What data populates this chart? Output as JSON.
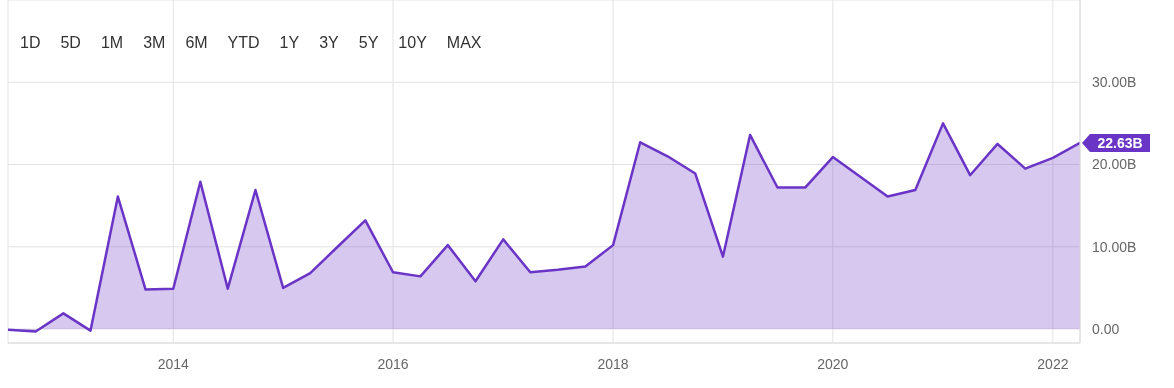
{
  "chart_data": {
    "type": "area",
    "annotations": [
      "1D",
      "5D",
      "1M",
      "3M",
      "6M",
      "YTD",
      "1Y",
      "3Y",
      "5Y",
      "10Y",
      "MAX"
    ],
    "x": [
      "2012-07",
      "2012-10",
      "2013-01",
      "2013-04",
      "2013-07",
      "2013-10",
      "2014-01",
      "2014-04",
      "2014-07",
      "2014-10",
      "2015-01",
      "2015-04",
      "2015-07",
      "2015-10",
      "2016-01",
      "2016-04",
      "2016-07",
      "2016-10",
      "2017-01",
      "2017-04",
      "2017-07",
      "2017-10",
      "2018-01",
      "2018-04",
      "2018-07",
      "2018-10",
      "2019-01",
      "2019-04",
      "2019-07",
      "2019-10",
      "2020-01",
      "2020-04",
      "2020-07",
      "2020-10",
      "2021-01",
      "2021-04",
      "2021-07",
      "2021-10",
      "2022-01",
      "2022-04"
    ],
    "series": [
      {
        "color": "#6a35c6",
        "values": [
          -0.1,
          -0.3,
          1.9,
          -0.2,
          16.1,
          4.8,
          4.9,
          17.9,
          4.9,
          16.9,
          5.0,
          6.8,
          10.0,
          13.2,
          6.9,
          6.4,
          10.2,
          5.8,
          10.9,
          6.9,
          7.2,
          7.6,
          10.2,
          22.7,
          21.0,
          18.9,
          8.8,
          23.6,
          17.2,
          17.2,
          20.9,
          18.5,
          16.1,
          16.9,
          25.0,
          18.7,
          22.5,
          19.5,
          20.8,
          22.63
        ],
        "value_labels": [
          null,
          null,
          null,
          null,
          null,
          null,
          null,
          null,
          null,
          null,
          null,
          null,
          null,
          null,
          null,
          null,
          null,
          null,
          null,
          null,
          null,
          null,
          null,
          null,
          null,
          null,
          null,
          null,
          null,
          null,
          null,
          null,
          null,
          null,
          null,
          null,
          null,
          null,
          null,
          "22.63B"
        ]
      }
    ],
    "xlim": [
      "2012-07",
      "2022-04"
    ],
    "xticks": [
      "2014",
      "2016",
      "2018",
      "2020",
      "2022"
    ],
    "ylim": [
      -1.7,
      40
    ],
    "yticks": [
      {
        "value": 0,
        "label": "0.00"
      },
      {
        "value": 10,
        "label": "10.00B"
      },
      {
        "value": 20,
        "label": "20.00B"
      },
      {
        "value": 30,
        "label": "30.00B"
      }
    ],
    "grid": true,
    "legend": false
  }
}
